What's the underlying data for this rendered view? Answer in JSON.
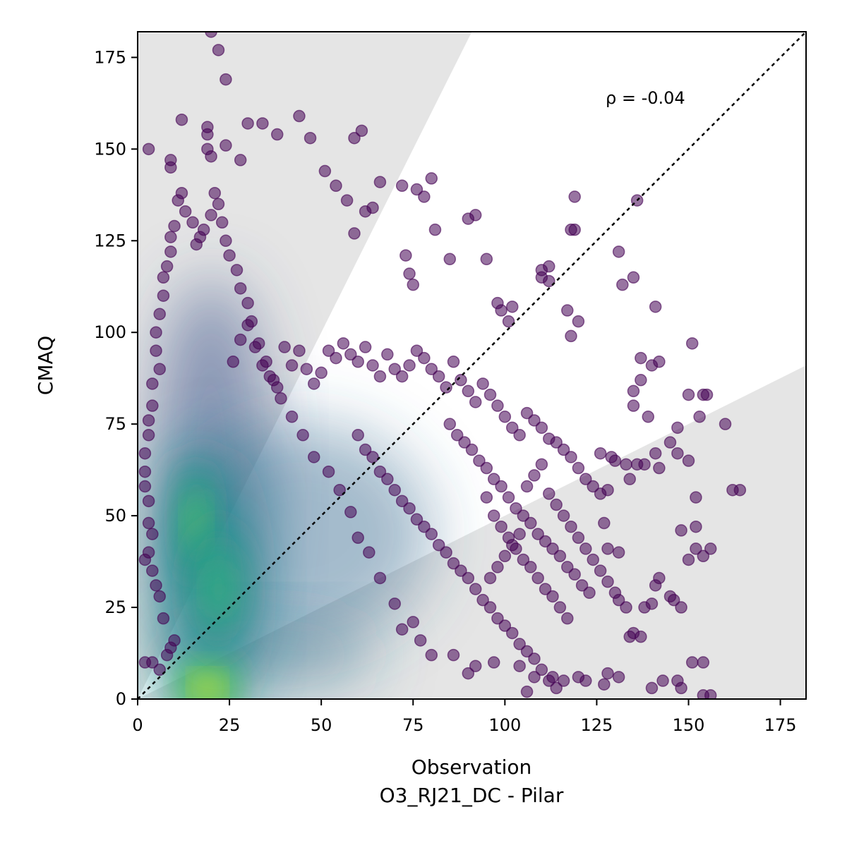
{
  "chart_data": {
    "type": "scatter",
    "title": "",
    "xlabel": "Observation",
    "xlabel_sub": "O3_RJ21_DC - Pilar",
    "ylabel": "CMAQ",
    "xlim": [
      0,
      182
    ],
    "ylim": [
      0,
      182
    ],
    "xticks": [
      0,
      25,
      50,
      75,
      100,
      125,
      150,
      175
    ],
    "yticks": [
      0,
      25,
      50,
      75,
      100,
      125,
      150,
      175
    ],
    "annotation": "ρ = -0.04",
    "identity_line": true,
    "shaded_regions": [
      {
        "name": "model over-prediction (factor of 2)",
        "slope_from": 2,
        "color": "#e5e5e5"
      },
      {
        "name": "model under-prediction (factor of 2)",
        "slope_to": 0.5,
        "color": "#e5e5e5"
      }
    ],
    "colormap": "viridis",
    "density_clusters": [
      {
        "x": 19,
        "y": 3,
        "level": 1.0
      },
      {
        "x": 16,
        "y": 48,
        "level": 0.75
      },
      {
        "x": 22,
        "y": 30,
        "level": 0.55
      }
    ],
    "points": [
      [
        20,
        182
      ],
      [
        22,
        177
      ],
      [
        24,
        169
      ],
      [
        3,
        150
      ],
      [
        9,
        145
      ],
      [
        9,
        147
      ],
      [
        12,
        158
      ],
      [
        19,
        156
      ],
      [
        19,
        154
      ],
      [
        24,
        151
      ],
      [
        19,
        150
      ],
      [
        20,
        148
      ],
      [
        28,
        147
      ],
      [
        30,
        157
      ],
      [
        34,
        157
      ],
      [
        38,
        154
      ],
      [
        44,
        159
      ],
      [
        47,
        153
      ],
      [
        59,
        153
      ],
      [
        61,
        155
      ],
      [
        64,
        134
      ],
      [
        62,
        133
      ],
      [
        51,
        144
      ],
      [
        54,
        140
      ],
      [
        57,
        136
      ],
      [
        59,
        127
      ],
      [
        66,
        141
      ],
      [
        72,
        140
      ],
      [
        76,
        139
      ],
      [
        78,
        137
      ],
      [
        80,
        142
      ],
      [
        81,
        128
      ],
      [
        85,
        120
      ],
      [
        73,
        121
      ],
      [
        74,
        116
      ],
      [
        75,
        113
      ],
      [
        90,
        131
      ],
      [
        92,
        132
      ],
      [
        95,
        120
      ],
      [
        98,
        108
      ],
      [
        99,
        106
      ],
      [
        102,
        107
      ],
      [
        101,
        103
      ],
      [
        110,
        115
      ],
      [
        112,
        118
      ],
      [
        110,
        117
      ],
      [
        112,
        114
      ],
      [
        119,
        137
      ],
      [
        119,
        128
      ],
      [
        118,
        128
      ],
      [
        120,
        103
      ],
      [
        117,
        106
      ],
      [
        118,
        99
      ],
      [
        131,
        122
      ],
      [
        132,
        113
      ],
      [
        135,
        115
      ],
      [
        136,
        136
      ],
      [
        141,
        107
      ],
      [
        140,
        91
      ],
      [
        142,
        92
      ],
      [
        151,
        97
      ],
      [
        137,
        93
      ],
      [
        137,
        87
      ],
      [
        135,
        84
      ],
      [
        135,
        80
      ],
      [
        139,
        77
      ],
      [
        150,
        83
      ],
      [
        154,
        83
      ],
      [
        153,
        77
      ],
      [
        160,
        75
      ],
      [
        162,
        57
      ],
      [
        164,
        57
      ],
      [
        155,
        83
      ],
      [
        147,
        74
      ],
      [
        145,
        70
      ],
      [
        147,
        67
      ],
      [
        150,
        65
      ],
      [
        152,
        55
      ],
      [
        152,
        47
      ],
      [
        152,
        41
      ],
      [
        156,
        41
      ],
      [
        154,
        39
      ],
      [
        148,
        46
      ],
      [
        142,
        63
      ],
      [
        141,
        67
      ],
      [
        138,
        64
      ],
      [
        136,
        64
      ],
      [
        134,
        60
      ],
      [
        133,
        64
      ],
      [
        130,
        65
      ],
      [
        129,
        66
      ],
      [
        126,
        67
      ],
      [
        128,
        57
      ],
      [
        126,
        56
      ],
      [
        127,
        48
      ],
      [
        128,
        41
      ],
      [
        131,
        40
      ],
      [
        131,
        27
      ],
      [
        133,
        25
      ],
      [
        134,
        17
      ],
      [
        135,
        18
      ],
      [
        137,
        17
      ],
      [
        138,
        25
      ],
      [
        140,
        26
      ],
      [
        141,
        31
      ],
      [
        142,
        33
      ],
      [
        145,
        28
      ],
      [
        146,
        27
      ],
      [
        148,
        25
      ],
      [
        150,
        38
      ],
      [
        151,
        10
      ],
      [
        154,
        10
      ],
      [
        154,
        1
      ],
      [
        156,
        1
      ],
      [
        140,
        3
      ],
      [
        143,
        5
      ],
      [
        147,
        5
      ],
      [
        148,
        3
      ],
      [
        131,
        6
      ],
      [
        128,
        7
      ],
      [
        127,
        4
      ],
      [
        122,
        5
      ],
      [
        120,
        6
      ],
      [
        116,
        5
      ],
      [
        113,
        6
      ],
      [
        108,
        6
      ],
      [
        106,
        2
      ],
      [
        104,
        9
      ],
      [
        97,
        10
      ],
      [
        92,
        9
      ],
      [
        90,
        7
      ],
      [
        86,
        12
      ],
      [
        80,
        12
      ],
      [
        77,
        16
      ],
      [
        75,
        21
      ],
      [
        72,
        19
      ],
      [
        70,
        26
      ],
      [
        66,
        33
      ],
      [
        63,
        40
      ],
      [
        60,
        44
      ],
      [
        58,
        51
      ],
      [
        55,
        57
      ],
      [
        52,
        62
      ],
      [
        48,
        66
      ],
      [
        45,
        72
      ],
      [
        42,
        77
      ],
      [
        39,
        82
      ],
      [
        37,
        87
      ],
      [
        35,
        92
      ],
      [
        33,
        97
      ],
      [
        31,
        103
      ],
      [
        30,
        108
      ],
      [
        28,
        112
      ],
      [
        27,
        117
      ],
      [
        25,
        121
      ],
      [
        24,
        125
      ],
      [
        23,
        130
      ],
      [
        22,
        135
      ],
      [
        21,
        138
      ],
      [
        20,
        132
      ],
      [
        18,
        128
      ],
      [
        17,
        126
      ],
      [
        16,
        124
      ],
      [
        15,
        130
      ],
      [
        13,
        133
      ],
      [
        12,
        138
      ],
      [
        11,
        136
      ],
      [
        10,
        129
      ],
      [
        9,
        126
      ],
      [
        9,
        122
      ],
      [
        8,
        118
      ],
      [
        7,
        115
      ],
      [
        7,
        110
      ],
      [
        6,
        105
      ],
      [
        5,
        100
      ],
      [
        5,
        95
      ],
      [
        6,
        90
      ],
      [
        4,
        86
      ],
      [
        4,
        80
      ],
      [
        3,
        76
      ],
      [
        3,
        72
      ],
      [
        2,
        67
      ],
      [
        2,
        62
      ],
      [
        2,
        58
      ],
      [
        3,
        54
      ],
      [
        3,
        48
      ],
      [
        4,
        45
      ],
      [
        3,
        40
      ],
      [
        2,
        38
      ],
      [
        4,
        35
      ],
      [
        5,
        31
      ],
      [
        6,
        28
      ],
      [
        7,
        22
      ],
      [
        2,
        10
      ],
      [
        4,
        10
      ],
      [
        6,
        8
      ],
      [
        8,
        12
      ],
      [
        9,
        14
      ],
      [
        10,
        16
      ],
      [
        26,
        92
      ],
      [
        28,
        98
      ],
      [
        30,
        102
      ],
      [
        32,
        96
      ],
      [
        34,
        91
      ],
      [
        36,
        88
      ],
      [
        38,
        85
      ],
      [
        40,
        96
      ],
      [
        42,
        91
      ],
      [
        44,
        95
      ],
      [
        46,
        90
      ],
      [
        48,
        86
      ],
      [
        50,
        89
      ],
      [
        52,
        95
      ],
      [
        54,
        93
      ],
      [
        56,
        97
      ],
      [
        58,
        94
      ],
      [
        60,
        92
      ],
      [
        62,
        96
      ],
      [
        64,
        91
      ],
      [
        66,
        88
      ],
      [
        68,
        94
      ],
      [
        70,
        90
      ],
      [
        72,
        88
      ],
      [
        74,
        91
      ],
      [
        76,
        95
      ],
      [
        78,
        93
      ],
      [
        80,
        90
      ],
      [
        82,
        88
      ],
      [
        84,
        85
      ],
      [
        86,
        92
      ],
      [
        88,
        87
      ],
      [
        90,
        84
      ],
      [
        92,
        81
      ],
      [
        94,
        86
      ],
      [
        96,
        83
      ],
      [
        98,
        80
      ],
      [
        100,
        77
      ],
      [
        102,
        74
      ],
      [
        104,
        72
      ],
      [
        106,
        78
      ],
      [
        108,
        76
      ],
      [
        110,
        74
      ],
      [
        112,
        71
      ],
      [
        114,
        70
      ],
      [
        116,
        68
      ],
      [
        118,
        66
      ],
      [
        120,
        63
      ],
      [
        122,
        60
      ],
      [
        124,
        58
      ],
      [
        85,
        75
      ],
      [
        87,
        72
      ],
      [
        89,
        70
      ],
      [
        91,
        68
      ],
      [
        93,
        65
      ],
      [
        95,
        63
      ],
      [
        97,
        60
      ],
      [
        99,
        58
      ],
      [
        101,
        55
      ],
      [
        103,
        52
      ],
      [
        105,
        50
      ],
      [
        107,
        48
      ],
      [
        109,
        45
      ],
      [
        111,
        43
      ],
      [
        113,
        41
      ],
      [
        115,
        39
      ],
      [
        117,
        36
      ],
      [
        119,
        34
      ],
      [
        121,
        31
      ],
      [
        123,
        29
      ],
      [
        60,
        72
      ],
      [
        62,
        68
      ],
      [
        64,
        66
      ],
      [
        66,
        62
      ],
      [
        68,
        60
      ],
      [
        70,
        57
      ],
      [
        72,
        54
      ],
      [
        74,
        52
      ],
      [
        76,
        49
      ],
      [
        78,
        47
      ],
      [
        80,
        45
      ],
      [
        82,
        42
      ],
      [
        84,
        40
      ],
      [
        86,
        37
      ],
      [
        88,
        35
      ],
      [
        90,
        33
      ],
      [
        92,
        30
      ],
      [
        94,
        27
      ],
      [
        96,
        25
      ],
      [
        98,
        22
      ],
      [
        100,
        20
      ],
      [
        102,
        18
      ],
      [
        104,
        15
      ],
      [
        106,
        13
      ],
      [
        108,
        11
      ],
      [
        110,
        8
      ],
      [
        112,
        5
      ],
      [
        114,
        3
      ],
      [
        95,
        55
      ],
      [
        97,
        50
      ],
      [
        99,
        47
      ],
      [
        101,
        44
      ],
      [
        103,
        41
      ],
      [
        105,
        38
      ],
      [
        107,
        36
      ],
      [
        109,
        33
      ],
      [
        111,
        30
      ],
      [
        113,
        28
      ],
      [
        115,
        25
      ],
      [
        117,
        22
      ],
      [
        96,
        33
      ],
      [
        98,
        36
      ],
      [
        100,
        39
      ],
      [
        102,
        42
      ],
      [
        104,
        45
      ],
      [
        106,
        58
      ],
      [
        108,
        61
      ],
      [
        110,
        64
      ],
      [
        112,
        56
      ],
      [
        114,
        53
      ],
      [
        116,
        50
      ],
      [
        118,
        47
      ],
      [
        120,
        44
      ],
      [
        122,
        41
      ],
      [
        124,
        38
      ],
      [
        126,
        35
      ],
      [
        128,
        32
      ],
      [
        130,
        29
      ]
    ]
  }
}
